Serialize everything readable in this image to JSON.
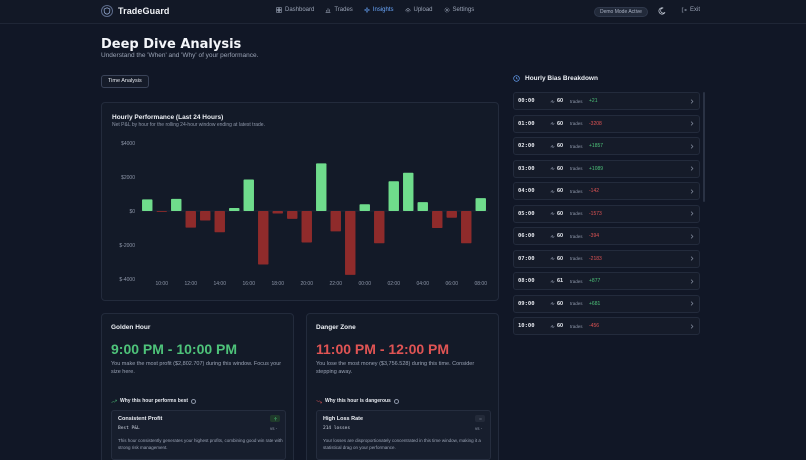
{
  "app": {
    "name": "TradeGuard"
  },
  "nav": {
    "items": [
      {
        "label": "Dashboard",
        "icon": "dashboard-icon",
        "active": false
      },
      {
        "label": "Trades",
        "icon": "bar-chart-icon",
        "active": false
      },
      {
        "label": "Insights",
        "icon": "sparkles-icon",
        "active": true
      },
      {
        "label": "Upload",
        "icon": "upload-icon",
        "active": false
      },
      {
        "label": "Settings",
        "icon": "gear-icon",
        "active": false
      }
    ],
    "demo_badge": "Demo Mode Active",
    "exit_label": "Exit"
  },
  "page": {
    "title": "Deep Dive Analysis",
    "subtitle": "Understand the 'When' and 'Why' of your performance.",
    "tab_label": "Time Analysis"
  },
  "chart": {
    "title": "Hourly Performance (Last 24 Hours)",
    "subtitle": "Net P&L by hour for the rolling 24-hour window ending at latest trade."
  },
  "chart_data": {
    "type": "bar",
    "title": "Hourly Performance (Last 24 Hours)",
    "subtitle": "Net P&L by hour for the rolling 24-hour window ending at latest trade.",
    "ylim": [
      -4000,
      4000
    ],
    "y_ticks": [
      4000,
      2000,
      0,
      -2000,
      -4000
    ],
    "y_tick_labels": [
      "$4000",
      "$2000",
      "$0",
      "$-2000",
      "$-4000"
    ],
    "x_tick_labels": [
      "10:00",
      "12:00",
      "14:00",
      "16:00",
      "18:00",
      "20:00",
      "22:00",
      "00:00",
      "02:00",
      "04:00",
      "06:00",
      "08:00"
    ],
    "grid": false,
    "categories": [
      "09:00",
      "10:00",
      "11:00",
      "12:00",
      "13:00",
      "14:00",
      "15:00",
      "16:00",
      "17:00",
      "18:00",
      "19:00",
      "20:00",
      "21:00",
      "22:00",
      "23:00",
      "00:00",
      "01:00",
      "02:00",
      "03:00",
      "04:00",
      "05:00",
      "06:00",
      "07:00",
      "08:00"
    ],
    "values": [
      681,
      -50,
      716,
      -980,
      -560,
      -1250,
      180,
      1850,
      -3150,
      -150,
      -460,
      -1850,
      2803,
      -1200,
      -3757,
      400,
      -1900,
      1750,
      2250,
      520,
      -1000,
      -394,
      -1900,
      760
    ],
    "positive_color": "#6fdc8c",
    "negative_color": "#8f2b2b"
  },
  "bias": {
    "title": "Hourly Bias Breakdown",
    "rows": [
      {
        "hour": "00:00",
        "count": "60",
        "trades_label": "trades",
        "pnl": "+21",
        "sign": "pos"
      },
      {
        "hour": "01:00",
        "count": "60",
        "trades_label": "trades",
        "pnl": "-3208",
        "sign": "neg"
      },
      {
        "hour": "02:00",
        "count": "60",
        "trades_label": "trades",
        "pnl": "+1857",
        "sign": "pos"
      },
      {
        "hour": "03:00",
        "count": "60",
        "trades_label": "trades",
        "pnl": "+1089",
        "sign": "pos"
      },
      {
        "hour": "04:00",
        "count": "60",
        "trades_label": "trades",
        "pnl": "-142",
        "sign": "neg"
      },
      {
        "hour": "05:00",
        "count": "60",
        "trades_label": "trades",
        "pnl": "-1573",
        "sign": "neg"
      },
      {
        "hour": "06:00",
        "count": "60",
        "trades_label": "trades",
        "pnl": "-394",
        "sign": "neg"
      },
      {
        "hour": "07:00",
        "count": "60",
        "trades_label": "trades",
        "pnl": "-2183",
        "sign": "neg"
      },
      {
        "hour": "08:00",
        "count": "61",
        "trades_label": "trades",
        "pnl": "+877",
        "sign": "pos"
      },
      {
        "hour": "09:00",
        "count": "60",
        "trades_label": "trades",
        "pnl": "+681",
        "sign": "pos"
      },
      {
        "hour": "10:00",
        "count": "60",
        "trades_label": "trades",
        "pnl": "-456",
        "sign": "neg"
      }
    ]
  },
  "golden": {
    "title": "Golden Hour",
    "time": "9:00 PM - 10:00 PM",
    "desc": "You make the most profit ($2,802.707) during this window. Focus your size here.",
    "why": "Why this hour performs best",
    "card_title": "Consistent Profit",
    "metric": "Best P&L",
    "vs": "vs -",
    "text": "This hour consistently generates your highest profits, combining good win rate with strong risk management."
  },
  "danger": {
    "title": "Danger Zone",
    "time": "11:00 PM - 12:00 PM",
    "desc": "You lose the most money ($3,756.528) during this time. Consider stepping away.",
    "why": "Why this hour is dangerous",
    "card_title": "High Loss Rate",
    "metric": "214 losses",
    "vs": "vs -",
    "text": "Your losses are disproportionately concentrated in this time window, making it a statistical drag on your performance."
  }
}
